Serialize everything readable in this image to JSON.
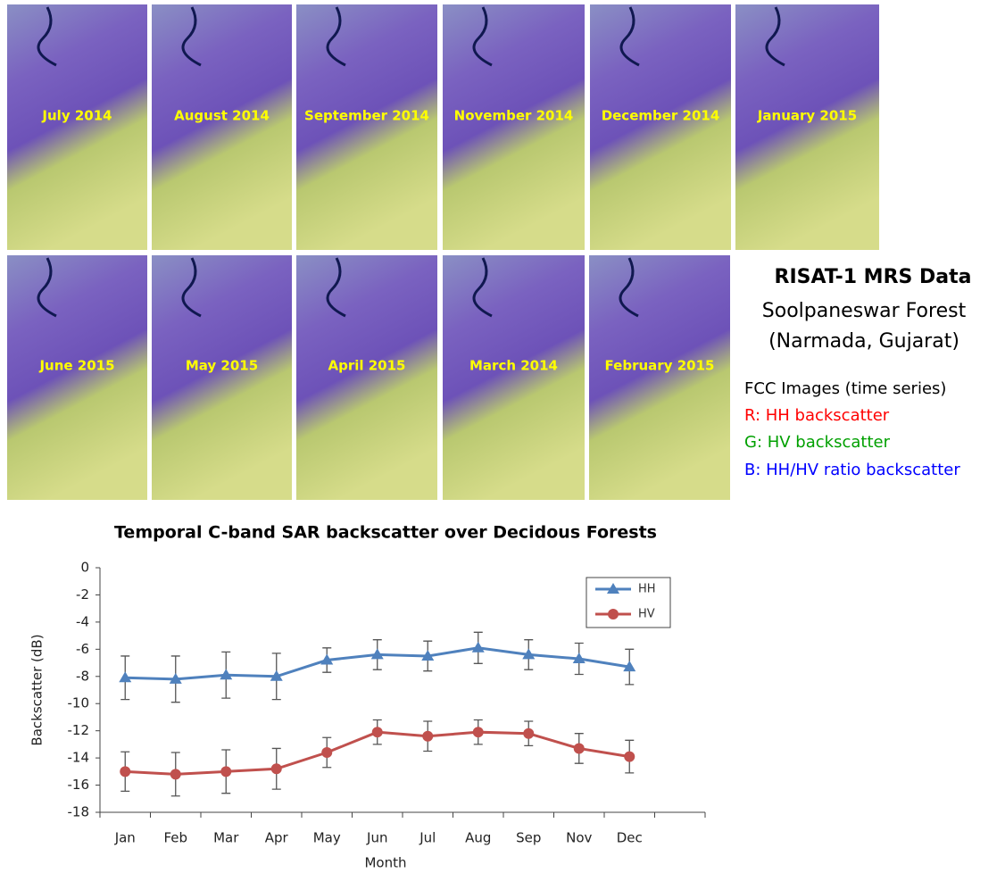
{
  "image_panel": {
    "top_row": [
      "July 2014",
      "August 2014",
      "September 2014",
      "November 2014",
      "December 2014",
      "January 2015"
    ],
    "bottom_row": [
      "June 2015",
      "May 2015",
      "April 2015",
      "March 2014",
      "February 2015"
    ]
  },
  "caption": {
    "title": "RISAT-1 MRS Data",
    "location": "Soolpaneswar Forest",
    "region": "(Narmada, Gujarat)",
    "fcc_heading": "FCC Images (time series)",
    "red": "R: HH backscatter",
    "green": "G: HV backscatter",
    "blue": "B: HH/HV ratio backscatter"
  },
  "chart_data": {
    "type": "line",
    "title": "Temporal C-band SAR backscatter over Decidous Forests",
    "x_label": "Month",
    "y_label": "Backscatter (dB)",
    "categories": [
      "Jan",
      "Feb",
      "Mar",
      "Apr",
      "May",
      "Jun",
      "Jul",
      "Aug",
      "Sep",
      "Nov",
      "Dec",
      null
    ],
    "series": [
      {
        "name": "HH",
        "color": "#4f81bd",
        "marker": "triangle",
        "values": [
          -8.1,
          -8.2,
          -7.9,
          -8.0,
          -6.8,
          -6.4,
          -6.5,
          -5.9,
          -6.4,
          -6.7,
          -7.3,
          null
        ],
        "errors": [
          1.6,
          1.7,
          1.7,
          1.7,
          0.9,
          1.1,
          1.1,
          1.15,
          1.1,
          1.15,
          1.3,
          null
        ]
      },
      {
        "name": "HV",
        "color": "#c0504d",
        "marker": "circle",
        "values": [
          -15.0,
          -15.2,
          -15.0,
          -14.8,
          -13.6,
          -12.1,
          -12.4,
          -12.1,
          -12.2,
          -13.3,
          -13.9,
          null
        ],
        "errors": [
          1.45,
          1.6,
          1.6,
          1.5,
          1.1,
          0.9,
          1.1,
          0.9,
          0.9,
          1.1,
          1.2,
          null
        ]
      }
    ],
    "ylim": [
      -18,
      0
    ],
    "yticks": [
      0,
      -2,
      -4,
      -6,
      -8,
      -10,
      -12,
      -14,
      -16,
      -18
    ],
    "grid": false,
    "legend": "upper right"
  }
}
